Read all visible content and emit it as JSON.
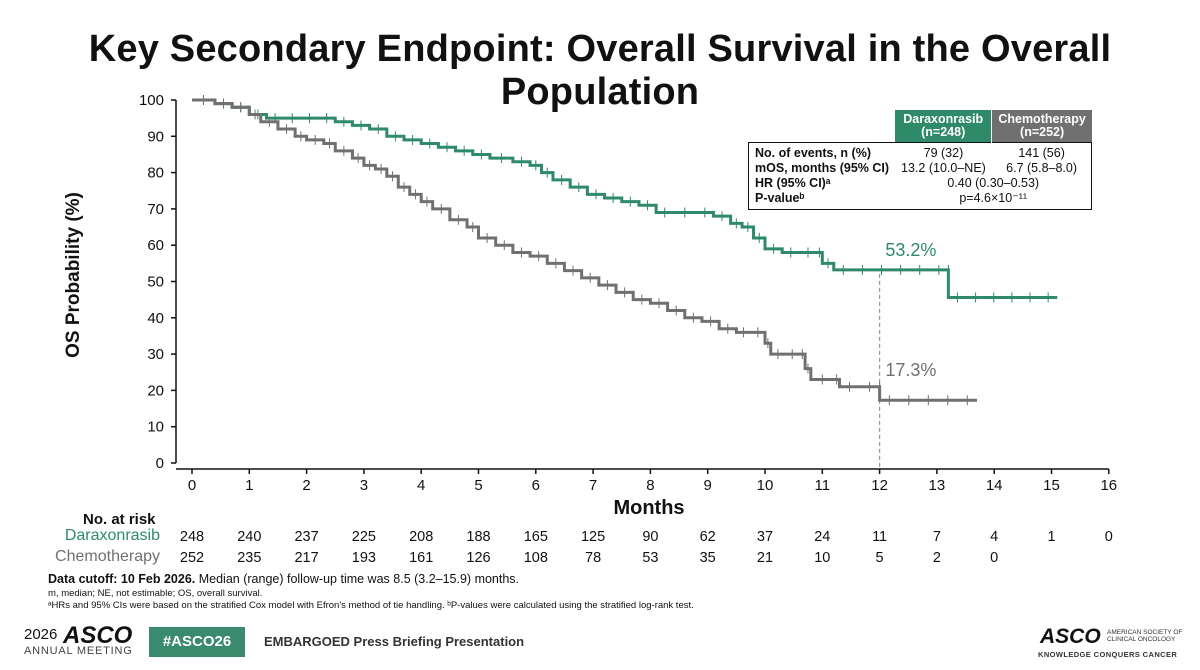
{
  "title": "Key Secondary Endpoint: Overall Survival in the Overall Population",
  "chart_data": {
    "type": "line",
    "ylabel": "OS Probability (%)",
    "xlabel": "Months",
    "xlim": [
      0,
      16
    ],
    "ylim": [
      0,
      100
    ],
    "x_ticks": [
      "0",
      "1",
      "2",
      "3",
      "4",
      "5",
      "6",
      "7",
      "8",
      "9",
      "10",
      "11",
      "12",
      "13",
      "14",
      "15",
      "16"
    ],
    "y_ticks": [
      "0",
      "10",
      "20",
      "30",
      "40",
      "50",
      "60",
      "70",
      "80",
      "90",
      "100"
    ],
    "grid": false,
    "series": [
      {
        "name": "Daraxonrasib",
        "color": "#2e8a68",
        "points": [
          [
            0,
            100
          ],
          [
            0.4,
            99
          ],
          [
            0.7,
            98
          ],
          [
            1.0,
            96
          ],
          [
            1.3,
            95
          ],
          [
            2.2,
            95
          ],
          [
            2.5,
            94
          ],
          [
            2.8,
            93
          ],
          [
            3.1,
            92
          ],
          [
            3.4,
            90
          ],
          [
            3.7,
            89
          ],
          [
            4.0,
            88
          ],
          [
            4.3,
            87
          ],
          [
            4.6,
            86
          ],
          [
            4.9,
            85
          ],
          [
            5.2,
            84
          ],
          [
            5.6,
            83
          ],
          [
            5.9,
            82
          ],
          [
            6.1,
            80
          ],
          [
            6.3,
            78
          ],
          [
            6.6,
            76
          ],
          [
            6.9,
            74
          ],
          [
            7.2,
            73
          ],
          [
            7.5,
            72
          ],
          [
            7.8,
            71
          ],
          [
            8.1,
            69
          ],
          [
            8.4,
            69
          ],
          [
            8.8,
            69
          ],
          [
            9.1,
            68
          ],
          [
            9.4,
            66
          ],
          [
            9.6,
            65
          ],
          [
            9.8,
            62
          ],
          [
            10.0,
            59
          ],
          [
            10.3,
            58
          ],
          [
            10.9,
            58
          ],
          [
            11.0,
            55
          ],
          [
            11.2,
            53.2
          ],
          [
            13.2,
            53.2
          ],
          [
            13.2,
            45.6
          ],
          [
            15.1,
            45.6
          ]
        ],
        "end_label": "53.2%"
      },
      {
        "name": "Chemotherapy",
        "color": "#707070",
        "points": [
          [
            0,
            100
          ],
          [
            0.4,
            99
          ],
          [
            0.7,
            98
          ],
          [
            1.0,
            96
          ],
          [
            1.2,
            94
          ],
          [
            1.5,
            92
          ],
          [
            1.8,
            90
          ],
          [
            2.0,
            89
          ],
          [
            2.3,
            88
          ],
          [
            2.5,
            86
          ],
          [
            2.8,
            84
          ],
          [
            3.0,
            82
          ],
          [
            3.2,
            81
          ],
          [
            3.4,
            79
          ],
          [
            3.6,
            76
          ],
          [
            3.8,
            74
          ],
          [
            4.0,
            72
          ],
          [
            4.2,
            70
          ],
          [
            4.5,
            67
          ],
          [
            4.8,
            65
          ],
          [
            5.0,
            62
          ],
          [
            5.3,
            60
          ],
          [
            5.6,
            58
          ],
          [
            5.9,
            57
          ],
          [
            6.2,
            55
          ],
          [
            6.5,
            53
          ],
          [
            6.8,
            51
          ],
          [
            7.1,
            49
          ],
          [
            7.4,
            47
          ],
          [
            7.7,
            45
          ],
          [
            8.0,
            44
          ],
          [
            8.3,
            42
          ],
          [
            8.6,
            40
          ],
          [
            8.9,
            39
          ],
          [
            9.2,
            37
          ],
          [
            9.5,
            36
          ],
          [
            10.0,
            33
          ],
          [
            10.1,
            30
          ],
          [
            10.6,
            30
          ],
          [
            10.7,
            26
          ],
          [
            10.8,
            23
          ],
          [
            11.2,
            23
          ],
          [
            11.3,
            21
          ],
          [
            12.0,
            21
          ],
          [
            12.0,
            17.3
          ],
          [
            13.7,
            17.3
          ]
        ],
        "end_label": "17.3%"
      }
    ],
    "reference_line_x": 12,
    "events_table": {
      "headers": [
        "Daraxonrasib\n(n=248)",
        "Chemotherapy\n(n=252)"
      ],
      "rows": [
        {
          "label": "No. of events, n (%)",
          "values": [
            "79 (32)",
            "141 (56)"
          ]
        },
        {
          "label": "mOS, months (95% CI)",
          "values": [
            "13.2 (10.0–NE)",
            "6.7 (5.8–8.0)"
          ]
        },
        {
          "label": "HR (95% CI)ᵃ",
          "value": "0.40 (0.30–0.53)"
        },
        {
          "label": "P-valueᵇ",
          "value": "p=4.6×10⁻¹¹"
        }
      ]
    },
    "risk_table": {
      "title": "No. at risk",
      "rows": [
        {
          "label": "Daraxonrasib",
          "color": "#2e8a68",
          "values": [
            "248",
            "240",
            "237",
            "225",
            "208",
            "188",
            "165",
            "125",
            "90",
            "62",
            "37",
            "24",
            "11",
            "7",
            "4",
            "1",
            "0"
          ]
        },
        {
          "label": "Chemotherapy",
          "color": "#707070",
          "values": [
            "252",
            "235",
            "217",
            "193",
            "161",
            "126",
            "108",
            "78",
            "53",
            "35",
            "21",
            "10",
            "5",
            "2",
            "0"
          ]
        }
      ]
    }
  },
  "footnotes": {
    "line1_bold": "Data cutoff: 10 Feb 2026.",
    "line1_rest": " Median (range) follow-up time was 8.5 (3.2–15.9) months.",
    "line2": "m, median; NE, not estimable; OS, overall survival.",
    "line3": "ᵃHRs and 95% CIs were based on the stratified Cox model with Efron's method of tie handling. ᵇP-values were calculated using the stratified log-rank test."
  },
  "footer": {
    "year": "2026",
    "asco": "ASCO",
    "meeting": "ANNUAL MEETING",
    "hashtag": "#ASCO26",
    "embargo": "EMBARGOED Press Briefing Presentation",
    "logo": "ASCO",
    "logo_sub": "AMERICAN SOCIETY OF CLINICAL ONCOLOGY",
    "logo_tag": "KNOWLEDGE CONQUERS CANCER"
  },
  "colors": {
    "dara": "#2e8a68",
    "chemo": "#707070",
    "hashtag_bg": "#3a8a6e"
  }
}
